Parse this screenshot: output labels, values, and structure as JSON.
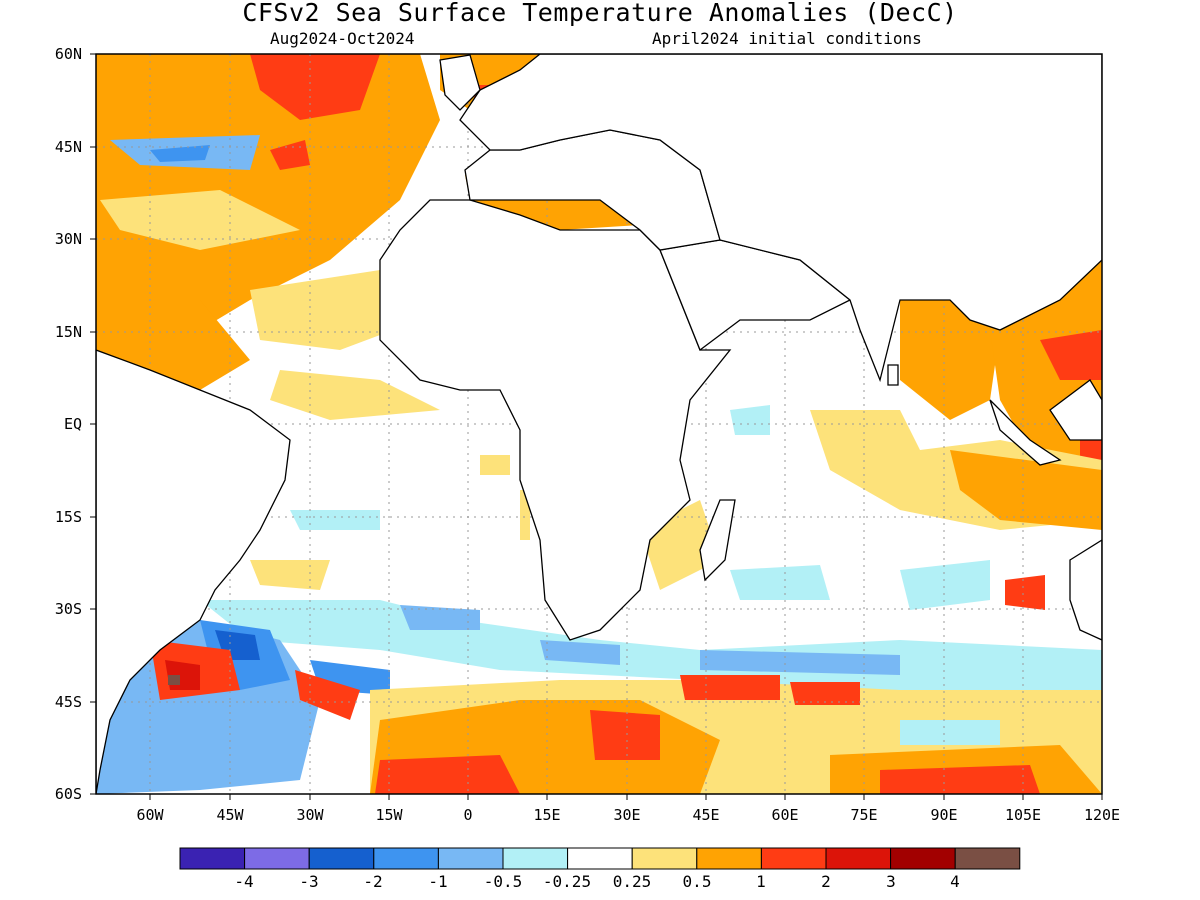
{
  "header": {
    "title": "CFSv2 Sea Surface Temperature Anomalies (DecC)",
    "period": "Aug2024-Oct2024",
    "init": "April2024 initial conditions"
  },
  "map_axes": {
    "lat_labels": [
      "60N",
      "45N",
      "30N",
      "15N",
      "EQ",
      "15S",
      "30S",
      "45S",
      "60S"
    ],
    "lon_labels": [
      "60W",
      "45W",
      "30W",
      "15W",
      "0",
      "15E",
      "30E",
      "45E",
      "60E",
      "75E",
      "90E",
      "105E",
      "120E"
    ]
  },
  "colorbar": {
    "colors": [
      "#3a22b2",
      "#7d6be6",
      "#1560cf",
      "#3e94f0",
      "#78b8f4",
      "#b2f0f6",
      "#ffffff",
      "#fde27a",
      "#ffa303",
      "#ff3c14",
      "#dc1409",
      "#a20000",
      "#7a4f44"
    ],
    "labels": [
      "-4",
      "-3",
      "-2",
      "-1",
      "-0.5",
      "-0.25",
      "0.25",
      "0.5",
      "1",
      "2",
      "3",
      "4"
    ]
  },
  "colors": {
    "land_outline": "#000000",
    "grid": "#999999"
  }
}
